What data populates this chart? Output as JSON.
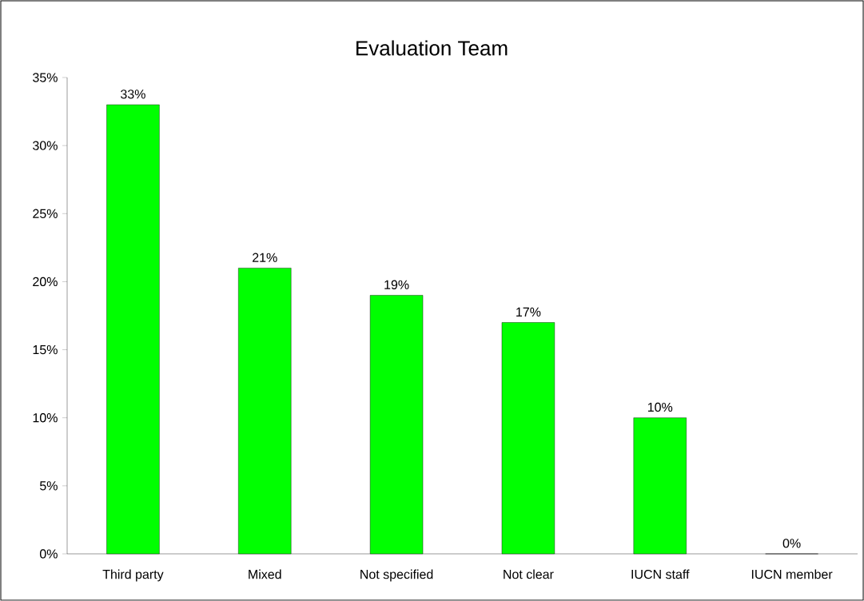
{
  "chart_data": {
    "type": "bar",
    "title": "Evaluation Team",
    "categories": [
      "Third party",
      "Mixed",
      "Not specified",
      "Not clear",
      "IUCN staff",
      "IUCN member"
    ],
    "values": [
      33,
      21,
      19,
      17,
      10,
      0
    ],
    "value_labels": [
      "33%",
      "21%",
      "19%",
      "17%",
      "10%",
      "0%"
    ],
    "color": "#00ff00",
    "ylim": [
      0,
      35
    ],
    "yticks": [
      {
        "value": 0,
        "label": "0%"
      },
      {
        "value": 5,
        "label": "5%"
      },
      {
        "value": 10,
        "label": "10%"
      },
      {
        "value": 15,
        "label": "15%"
      },
      {
        "value": 20,
        "label": "20%"
      },
      {
        "value": 25,
        "label": "25%"
      },
      {
        "value": 30,
        "label": "30%"
      },
      {
        "value": 35,
        "label": "35%"
      }
    ],
    "grid": false
  }
}
